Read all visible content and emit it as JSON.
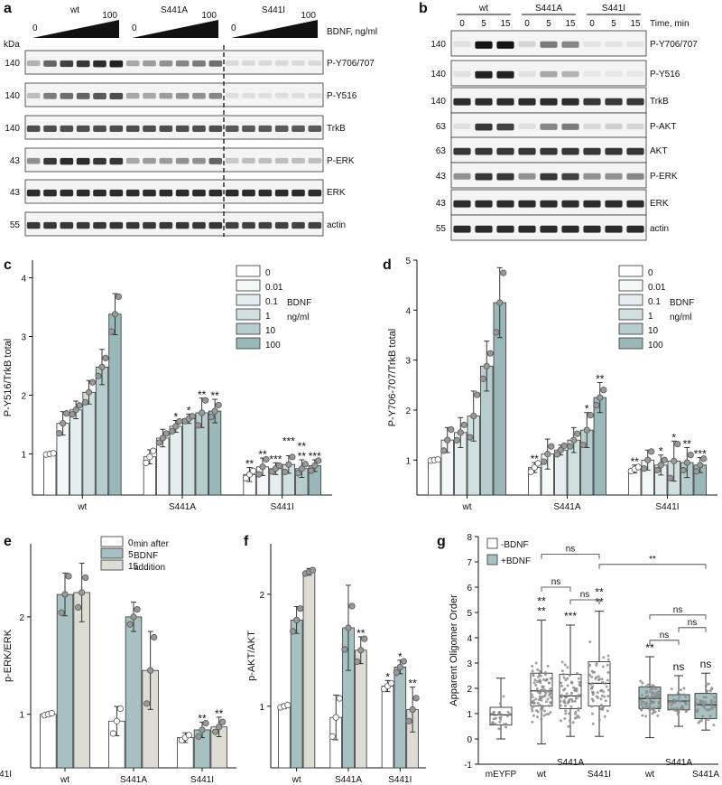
{
  "blot_a": {
    "letter": "a",
    "groups": [
      "wt",
      "S441A",
      "S441I"
    ],
    "ramp_low": "0",
    "ramp_high": "100",
    "dose_label": "BDNF, ng/ml",
    "kda": "kDa",
    "rows": [
      {
        "mw": "140",
        "label": "P-Y706/707",
        "pattern": [
          0.25,
          0.6,
          0.75,
          0.8,
          0.85,
          0.9,
          0.3,
          0.35,
          0.4,
          0.45,
          0.5,
          0.55,
          0.08,
          0.08,
          0.08,
          0.08,
          0.08,
          0.08
        ]
      },
      {
        "mw": "140",
        "label": "P-Y516",
        "pattern": [
          0.2,
          0.5,
          0.55,
          0.6,
          0.65,
          0.7,
          0.3,
          0.3,
          0.35,
          0.4,
          0.4,
          0.45,
          0.06,
          0.06,
          0.06,
          0.06,
          0.06,
          0.06
        ]
      },
      {
        "mw": "140",
        "label": "TrkB",
        "pattern": [
          0.7,
          0.7,
          0.7,
          0.7,
          0.7,
          0.7,
          0.7,
          0.7,
          0.7,
          0.7,
          0.7,
          0.7,
          0.65,
          0.65,
          0.65,
          0.65,
          0.65,
          0.65
        ]
      },
      {
        "mw": "43",
        "label": "P-ERK",
        "pattern": [
          0.4,
          0.8,
          0.85,
          0.85,
          0.8,
          0.8,
          0.3,
          0.35,
          0.35,
          0.4,
          0.4,
          0.6,
          0.15,
          0.2,
          0.2,
          0.2,
          0.2,
          0.2
        ]
      },
      {
        "mw": "43",
        "label": "ERK",
        "pattern": [
          0.85,
          0.85,
          0.85,
          0.85,
          0.85,
          0.85,
          0.85,
          0.85,
          0.85,
          0.85,
          0.85,
          0.85,
          0.85,
          0.85,
          0.85,
          0.85,
          0.85,
          0.85
        ]
      },
      {
        "mw": "55",
        "label": "actin",
        "pattern": [
          0.8,
          0.8,
          0.8,
          0.8,
          0.8,
          0.8,
          0.8,
          0.8,
          0.8,
          0.8,
          0.8,
          0.8,
          0.75,
          0.75,
          0.75,
          0.75,
          0.75,
          0.75
        ]
      }
    ]
  },
  "blot_b": {
    "letter": "b",
    "groups": [
      "wt",
      "S441A",
      "S441I"
    ],
    "time_ticks": [
      "0",
      "5",
      "15",
      "0",
      "5",
      "15",
      "0",
      "5",
      "15"
    ],
    "time_label": "Time, min",
    "rows": [
      {
        "mw": "140",
        "label": "P-Y706/707",
        "pattern": [
          0.05,
          0.95,
          0.95,
          0.1,
          0.5,
          0.45,
          0.03,
          0.03,
          0.03
        ]
      },
      {
        "mw": "140",
        "label": "P-Y516",
        "pattern": [
          0.05,
          0.9,
          0.9,
          0.05,
          0.3,
          0.25,
          0.02,
          0.02,
          0.02
        ]
      },
      {
        "mw": "140",
        "label": "TrkB",
        "pattern": [
          0.85,
          0.85,
          0.85,
          0.85,
          0.85,
          0.85,
          0.8,
          0.8,
          0.8
        ]
      },
      {
        "mw": "63",
        "label": "P-AKT",
        "pattern": [
          0.05,
          0.8,
          0.75,
          0.05,
          0.45,
          0.5,
          0.08,
          0.12,
          0.1
        ]
      },
      {
        "mw": "63",
        "label": "AKT",
        "pattern": [
          0.8,
          0.8,
          0.8,
          0.8,
          0.8,
          0.8,
          0.8,
          0.8,
          0.8
        ]
      },
      {
        "mw": "43",
        "label": "P-ERK",
        "pattern": [
          0.4,
          0.8,
          0.8,
          0.4,
          0.8,
          0.75,
          0.4,
          0.4,
          0.45
        ]
      },
      {
        "mw": "43",
        "label": "ERK",
        "pattern": [
          0.85,
          0.85,
          0.85,
          0.85,
          0.85,
          0.85,
          0.85,
          0.85,
          0.85
        ]
      },
      {
        "mw": "55",
        "label": "actin",
        "pattern": [
          0.85,
          0.85,
          0.85,
          0.85,
          0.85,
          0.85,
          0.85,
          0.85,
          0.85
        ]
      }
    ]
  },
  "chart_data": [
    {
      "id": "c",
      "type": "bar",
      "letter": "c",
      "ylabel": "P-Y516/TrkB total",
      "ylim": [
        0.3,
        4.3
      ],
      "yticks": [
        "1",
        "2",
        "3",
        "4"
      ],
      "categories": [
        "wt",
        "S441A",
        "S441I"
      ],
      "legend": {
        "entries": [
          "0",
          "0.01",
          "0.1",
          "1",
          "10",
          "100"
        ],
        "caption": [
          "BDNF",
          "ng/ml"
        ]
      },
      "colors": [
        "#ffffff",
        "#f3f7f7",
        "#e4eeee",
        "#d0e0e0",
        "#b6cccd",
        "#9bb8b9"
      ],
      "series": [
        {
          "name": "0",
          "values": [
            1.0,
            0.95,
            0.65
          ],
          "err": [
            0.02,
            0.12,
            0.12
          ]
        },
        {
          "name": "0.01",
          "values": [
            1.52,
            1.27,
            0.78
          ],
          "err": [
            0.2,
            0.15,
            0.15
          ]
        },
        {
          "name": "0.1",
          "values": [
            1.75,
            1.47,
            0.75
          ],
          "err": [
            0.15,
            0.1,
            0.1
          ]
        },
        {
          "name": "1",
          "values": [
            2.05,
            1.6,
            0.82
          ],
          "err": [
            0.2,
            0.08,
            0.15
          ]
        },
        {
          "name": "10",
          "values": [
            2.48,
            1.7,
            0.75
          ],
          "err": [
            0.3,
            0.25,
            0.15
          ]
        },
        {
          "name": "100",
          "values": [
            3.38,
            1.73,
            0.8
          ],
          "err": [
            0.35,
            0.2,
            0.1
          ]
        }
      ],
      "annotations": [
        {
          "cat": 1,
          "series": 2,
          "text": "*"
        },
        {
          "cat": 1,
          "series": 3,
          "text": "*"
        },
        {
          "cat": 1,
          "series": 4,
          "text": "**"
        },
        {
          "cat": 1,
          "series": 5,
          "text": "**"
        },
        {
          "cat": 2,
          "series": 0,
          "text": "**"
        },
        {
          "cat": 2,
          "series": 1,
          "text": "**"
        },
        {
          "cat": 2,
          "series": 2,
          "text": "***"
        },
        {
          "cat": 2,
          "series": 3,
          "text": "***"
        },
        {
          "cat": 2,
          "series": 4,
          "text": "**"
        },
        {
          "cat": 2,
          "series": 4,
          "text": "**",
          "row": 2
        },
        {
          "cat": 2,
          "series": 5,
          "text": "***"
        }
      ]
    },
    {
      "id": "d",
      "type": "bar",
      "letter": "d",
      "ylabel": "P-Y706-707/TrkB total",
      "ylim": [
        0.3,
        5.0
      ],
      "yticks": [
        "1",
        "2",
        "3",
        "4",
        "5"
      ],
      "categories": [
        "wt",
        "S441A",
        "S441I"
      ],
      "legend": {
        "entries": [
          "0",
          "0.01",
          "0.1",
          "1",
          "10",
          "100"
        ],
        "caption": [
          "BDNF",
          "ng/ml"
        ]
      },
      "colors": [
        "#ffffff",
        "#f3f7f7",
        "#e4eeee",
        "#d0e0e0",
        "#b6cccd",
        "#9bb8b9"
      ],
      "series": [
        {
          "name": "0",
          "values": [
            1.0,
            0.85,
            0.82
          ],
          "err": [
            0.02,
            0.1,
            0.08
          ]
        },
        {
          "name": "0.01",
          "values": [
            1.4,
            1.12,
            1.0
          ],
          "err": [
            0.25,
            0.3,
            0.2
          ]
        },
        {
          "name": "0.1",
          "values": [
            1.55,
            1.2,
            0.9
          ],
          "err": [
            0.3,
            0.1,
            0.2
          ]
        },
        {
          "name": "1",
          "values": [
            1.88,
            1.4,
            0.98
          ],
          "err": [
            0.5,
            0.25,
            0.4
          ]
        },
        {
          "name": "10",
          "values": [
            2.88,
            1.6,
            0.95
          ],
          "err": [
            0.5,
            0.35,
            0.3
          ]
        },
        {
          "name": "100",
          "values": [
            4.15,
            2.25,
            0.9
          ],
          "err": [
            0.7,
            0.3,
            0.15
          ]
        }
      ],
      "annotations": [
        {
          "cat": 1,
          "series": 0,
          "text": "**"
        },
        {
          "cat": 1,
          "series": 4,
          "text": "*"
        },
        {
          "cat": 1,
          "series": 5,
          "text": "**"
        },
        {
          "cat": 2,
          "series": 0,
          "text": "**"
        },
        {
          "cat": 2,
          "series": 2,
          "text": "*"
        },
        {
          "cat": 2,
          "series": 3,
          "text": "*"
        },
        {
          "cat": 2,
          "series": 4,
          "text": "**"
        },
        {
          "cat": 2,
          "series": 5,
          "text": "***"
        }
      ]
    },
    {
      "id": "e",
      "type": "bar",
      "letter": "e",
      "ylabel": "p-ERK/ERK",
      "ylim": [
        0.45,
        2.75
      ],
      "yticks": [
        "1",
        "2"
      ],
      "categories": [
        "wt",
        "S441A",
        "S441I"
      ],
      "legend": {
        "entries": [
          "0",
          "5",
          "15"
        ],
        "caption": [
          "min after",
          "BDNF",
          "addition"
        ]
      },
      "colors": [
        "#ffffff",
        "#a7c1c2",
        "#dcdcd4"
      ],
      "series": [
        {
          "name": "0",
          "values": [
            1.0,
            0.93,
            0.76
          ],
          "err": [
            0.02,
            0.15,
            0.05
          ]
        },
        {
          "name": "5",
          "values": [
            2.23,
            2.0,
            0.84
          ],
          "err": [
            0.22,
            0.15,
            0.08
          ]
        },
        {
          "name": "15",
          "values": [
            2.25,
            1.45,
            0.87
          ],
          "err": [
            0.3,
            0.4,
            0.1
          ]
        }
      ],
      "annotations": [
        {
          "cat": 2,
          "series": 1,
          "text": "**"
        },
        {
          "cat": 2,
          "series": 2,
          "text": "**"
        }
      ]
    },
    {
      "id": "f",
      "type": "bar",
      "letter": "f",
      "ylabel": "p-AKT/AKT",
      "ylim": [
        0.45,
        2.45
      ],
      "yticks": [
        "1",
        "2"
      ],
      "categories": [
        "wt",
        "S441A",
        "S441I"
      ],
      "colors": [
        "#ffffff",
        "#a7c1c2",
        "#dcdcd4"
      ],
      "series": [
        {
          "name": "0",
          "values": [
            1.0,
            0.9,
            1.18
          ],
          "err": [
            0.02,
            0.2,
            0.05
          ]
        },
        {
          "name": "5",
          "values": [
            1.77,
            1.7,
            1.35
          ],
          "err": [
            0.12,
            0.38,
            0.06
          ]
        },
        {
          "name": "15",
          "values": [
            2.2,
            1.5,
            0.97
          ],
          "err": [
            0.03,
            0.12,
            0.2
          ]
        }
      ],
      "annotations": [
        {
          "cat": 1,
          "series": 2,
          "text": "**"
        },
        {
          "cat": 2,
          "series": 0,
          "text": "*"
        },
        {
          "cat": 2,
          "series": 1,
          "text": "*"
        },
        {
          "cat": 2,
          "series": 2,
          "text": "**"
        }
      ]
    },
    {
      "id": "g",
      "type": "box",
      "letter": "g",
      "ylabel": "Apparent Oligomer Order",
      "ylim": [
        -1,
        8
      ],
      "yticks": [
        "-1",
        "0",
        "1",
        "2",
        "3",
        "4",
        "5",
        "6",
        "7",
        "8"
      ],
      "legend": {
        "entries": [
          "-BDNF",
          "+BDNF"
        ]
      },
      "colors": {
        "minus": "#ffffff",
        "plus": "#a7c1c2"
      },
      "xlabels": [
        "mEYFP",
        "wt",
        "S441I",
        "wt",
        "S441A",
        "S441I"
      ],
      "group_labels": [
        {
          "text": "S441A",
          "box": 2
        },
        {
          "text": "S441A",
          "box": 5
        }
      ],
      "boxes": [
        {
          "name": "mEYFP",
          "fill": "minus",
          "whislo": 0.0,
          "q1": 0.55,
          "med": 0.95,
          "q3": 1.25,
          "whishi": 2.4,
          "n": 28
        },
        {
          "name": "wt",
          "fill": "minus",
          "whislo": -0.2,
          "q1": 1.3,
          "med": 1.9,
          "q3": 2.6,
          "whishi": 4.7,
          "n": 90
        },
        {
          "name": "S441A",
          "fill": "minus",
          "whislo": 0.1,
          "q1": 1.2,
          "med": 1.7,
          "q3": 2.55,
          "whishi": 4.5,
          "n": 70
        },
        {
          "name": "S441I",
          "fill": "minus",
          "whislo": 0.1,
          "q1": 1.3,
          "med": 2.2,
          "q3": 3.05,
          "whishi": 5.05,
          "n": 60
        },
        {
          "name": "wt",
          "fill": "plus",
          "whislo": 0.05,
          "q1": 1.2,
          "med": 1.6,
          "q3": 2.05,
          "whishi": 3.25,
          "n": 70
        },
        {
          "name": "S441A",
          "fill": "plus",
          "whislo": 0.5,
          "q1": 1.15,
          "med": 1.5,
          "q3": 1.75,
          "whishi": 2.5,
          "n": 40
        },
        {
          "name": "S441I",
          "fill": "plus",
          "whislo": 0.35,
          "q1": 0.8,
          "med": 1.35,
          "q3": 1.8,
          "whishi": 2.6,
          "n": 45
        }
      ],
      "box_sig": [
        {
          "box": 1,
          "lines": [
            "**",
            "**"
          ]
        },
        {
          "box": 2,
          "lines": [
            "***"
          ]
        },
        {
          "box": 3,
          "lines": [
            "**",
            "**"
          ]
        },
        {
          "box": 4,
          "lines": [
            "**"
          ]
        },
        {
          "box": 5,
          "lines": [
            "ns"
          ]
        },
        {
          "box": 6,
          "lines": [
            "ns"
          ]
        }
      ],
      "brackets": [
        {
          "from": 1,
          "to": 3,
          "y": 7.3,
          "text": "ns"
        },
        {
          "from": 1,
          "to": 2,
          "y": 6.0,
          "text": "ns"
        },
        {
          "from": 2,
          "to": 3,
          "y": 5.5,
          "text": "ns"
        },
        {
          "from": 3,
          "to": 6,
          "y": 6.9,
          "text": "**"
        },
        {
          "from": 4,
          "to": 6,
          "y": 4.9,
          "text": "ns"
        },
        {
          "from": 4,
          "to": 5,
          "y": 3.9,
          "text": "ns"
        },
        {
          "from": 5,
          "to": 6,
          "y": 4.4,
          "text": "ns"
        }
      ]
    }
  ]
}
